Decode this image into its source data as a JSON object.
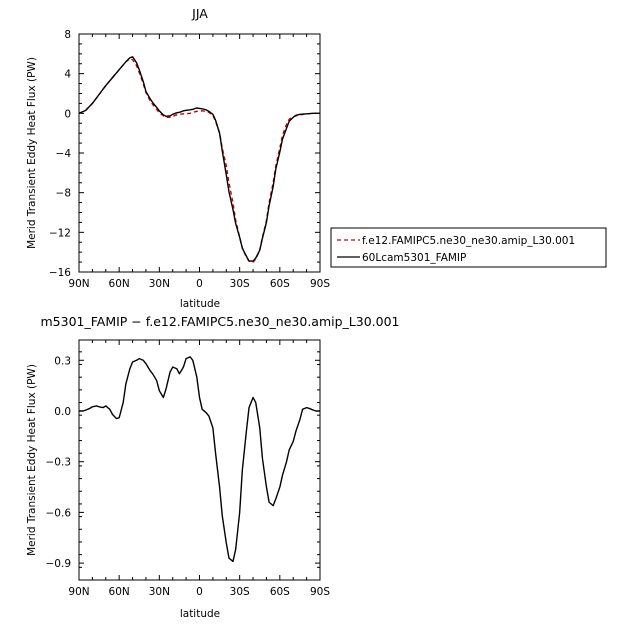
{
  "chart_data": [
    {
      "type": "line",
      "title": "JJA",
      "xlabel": "latitude",
      "ylabel": "Merid Transient Eddy Heat Flux (PW)",
      "xlim": [
        90,
        -90
      ],
      "ylim": [
        -16,
        8
      ],
      "xticks": [
        90,
        60,
        30,
        0,
        -30,
        -60,
        -90
      ],
      "xtick_labels": [
        "90N",
        "60N",
        "30N",
        "0",
        "30S",
        "60S",
        "90S"
      ],
      "yticks": [
        8,
        4,
        0,
        -4,
        -8,
        -12,
        -16
      ],
      "ytick_labels": [
        "8",
        "4",
        "0",
        "−4",
        "−8",
        "−12",
        "−16"
      ],
      "legend_position": "right",
      "series": [
        {
          "name": "f.e12.FAMIPC5.ne30_ne30.amip_L30.001",
          "color": "#cc0000",
          "dash": "dashed",
          "x": [
            90,
            85,
            80,
            75,
            70,
            65,
            60,
            55,
            52,
            50,
            47,
            45,
            42,
            40,
            37,
            35,
            32,
            30,
            27,
            25,
            22,
            20,
            17,
            15,
            12,
            10,
            7,
            5,
            2,
            0,
            -2,
            -5,
            -7,
            -10,
            -12,
            -15,
            -17,
            -20,
            -22,
            -25,
            -27,
            -30,
            -32,
            -35,
            -37,
            -40,
            -42,
            -45,
            -47,
            -50,
            -52,
            -55,
            -57,
            -60,
            -62,
            -65,
            -67,
            -70,
            -72,
            -75,
            -80,
            -85,
            -90
          ],
          "y": [
            0,
            0.3,
            1.0,
            1.9,
            2.8,
            3.6,
            4.4,
            5.2,
            5.5,
            5.4,
            4.8,
            4.1,
            3.0,
            2.1,
            1.3,
            0.9,
            0.4,
            0.05,
            -0.25,
            -0.4,
            -0.4,
            -0.3,
            -0.15,
            -0.1,
            -0.05,
            -0.05,
            0,
            0.1,
            0.2,
            0.2,
            0.25,
            0.2,
            0.1,
            -0.2,
            -0.8,
            -2.0,
            -3.5,
            -5.3,
            -7.0,
            -9.0,
            -10.8,
            -12.5,
            -13.6,
            -14.5,
            -14.9,
            -15.0,
            -14.7,
            -13.8,
            -12.5,
            -10.8,
            -9.0,
            -7.0,
            -5.3,
            -3.5,
            -2.2,
            -1.1,
            -0.6,
            -0.35,
            -0.25,
            -0.15,
            -0.05,
            0,
            0
          ]
        },
        {
          "name": "60Lcam5301_FAMIP",
          "color": "#000000",
          "dash": "solid",
          "x": [
            90,
            85,
            80,
            75,
            70,
            65,
            60,
            55,
            52,
            50,
            47,
            45,
            42,
            40,
            37,
            35,
            32,
            30,
            27,
            25,
            22,
            20,
            17,
            15,
            12,
            10,
            7,
            5,
            2,
            0,
            -2,
            -5,
            -7,
            -10,
            -12,
            -15,
            -17,
            -20,
            -22,
            -25,
            -27,
            -30,
            -32,
            -35,
            -37,
            -40,
            -42,
            -45,
            -47,
            -50,
            -52,
            -55,
            -57,
            -60,
            -62,
            -65,
            -67,
            -70,
            -72,
            -75,
            -80,
            -85,
            -90
          ],
          "y": [
            0,
            0.3,
            1.0,
            1.9,
            2.8,
            3.6,
            4.4,
            5.2,
            5.6,
            5.7,
            5.1,
            4.4,
            3.2,
            2.2,
            1.5,
            1.1,
            0.6,
            0.25,
            -0.15,
            -0.3,
            -0.25,
            -0.1,
            0.05,
            0.1,
            0.25,
            0.3,
            0.35,
            0.4,
            0.55,
            0.5,
            0.45,
            0.35,
            0.2,
            -0.1,
            -0.7,
            -2.0,
            -3.8,
            -6.2,
            -7.9,
            -9.7,
            -11.1,
            -12.5,
            -13.6,
            -14.4,
            -14.9,
            -14.9,
            -14.6,
            -13.8,
            -12.6,
            -11.0,
            -9.3,
            -7.4,
            -5.6,
            -3.9,
            -2.6,
            -1.5,
            -0.8,
            -0.4,
            -0.2,
            -0.1,
            -0.05,
            0,
            0
          ]
        }
      ]
    },
    {
      "type": "line",
      "title": "m5301_FAMIP − f.e12.FAMIPC5.ne30_ne30.amip_L30.001",
      "xlabel": "latitude",
      "ylabel": "Merid Transient Eddy Heat Flux (PW)",
      "xlim": [
        90,
        -90
      ],
      "ylim": [
        -1.0,
        0.42
      ],
      "xticks": [
        90,
        60,
        30,
        0,
        -30,
        -60,
        -90
      ],
      "xtick_labels": [
        "90N",
        "60N",
        "30N",
        "0",
        "30S",
        "60S",
        "90S"
      ],
      "yticks": [
        0.3,
        0.0,
        -0.3,
        -0.6,
        -0.9
      ],
      "ytick_labels": [
        "0.3",
        "0.0",
        "−0.3",
        "−0.6",
        "−0.9"
      ],
      "series": [
        {
          "color": "#000000",
          "dash": "solid",
          "x": [
            90,
            87,
            85,
            82,
            80,
            77,
            75,
            72,
            70,
            67,
            65,
            62,
            60,
            57,
            55,
            52,
            50,
            47,
            45,
            42,
            40,
            37,
            35,
            32,
            30,
            27,
            25,
            22,
            20,
            17,
            15,
            12,
            10,
            7,
            5,
            2,
            0,
            -2,
            -5,
            -7,
            -10,
            -12,
            -15,
            -17,
            -20,
            -22,
            -25,
            -27,
            -30,
            -32,
            -35,
            -37,
            -40,
            -42,
            -45,
            -47,
            -50,
            -52,
            -55,
            -57,
            -60,
            -62,
            -65,
            -67,
            -70,
            -72,
            -75,
            -77,
            -80,
            -82,
            -85,
            -87,
            -90
          ],
          "y": [
            0,
            0,
            0.005,
            0.015,
            0.025,
            0.03,
            0.025,
            0.02,
            0.03,
            0.01,
            -0.02,
            -0.045,
            -0.04,
            0.05,
            0.16,
            0.25,
            0.29,
            0.3,
            0.31,
            0.3,
            0.28,
            0.24,
            0.22,
            0.18,
            0.12,
            0.08,
            0.13,
            0.23,
            0.26,
            0.25,
            0.22,
            0.26,
            0.31,
            0.32,
            0.3,
            0.2,
            0.08,
            0.01,
            -0.01,
            -0.03,
            -0.1,
            -0.25,
            -0.45,
            -0.62,
            -0.78,
            -0.87,
            -0.89,
            -0.82,
            -0.6,
            -0.35,
            -0.12,
            0.02,
            0.08,
            0.05,
            -0.1,
            -0.28,
            -0.45,
            -0.54,
            -0.56,
            -0.52,
            -0.45,
            -0.38,
            -0.3,
            -0.23,
            -0.18,
            -0.12,
            -0.05,
            0.01,
            0.02,
            0.015,
            0.005,
            0,
            0
          ]
        }
      ]
    }
  ]
}
